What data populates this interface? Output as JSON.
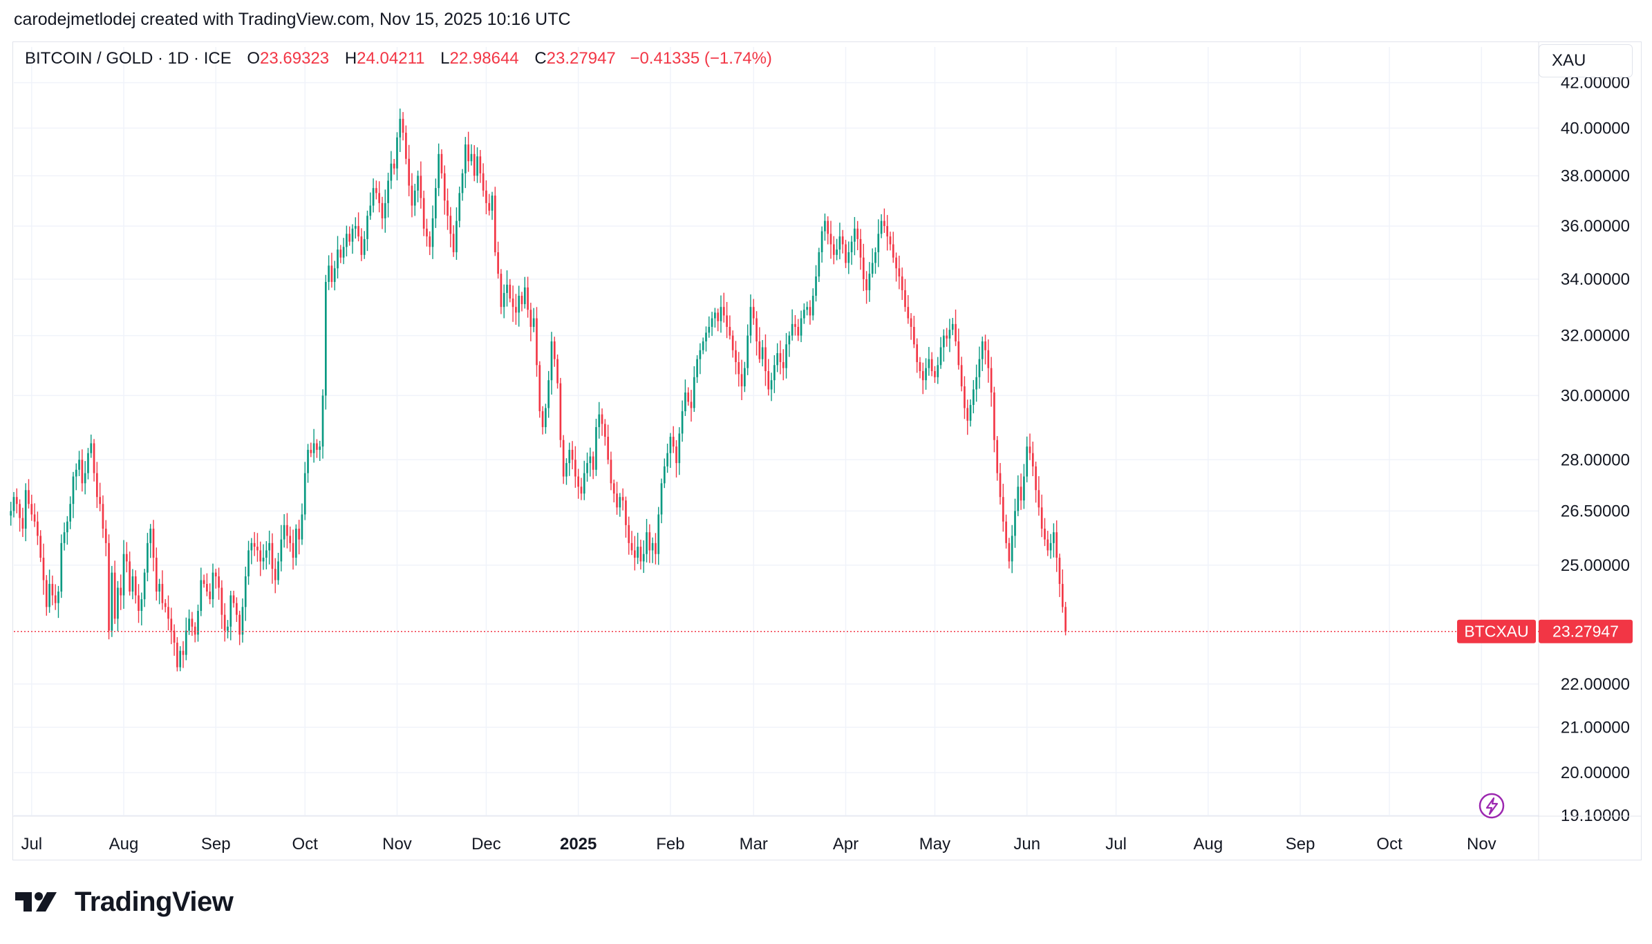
{
  "header": {
    "caption": "carodejmetlodej created with TradingView.com, Nov 15, 2025 10:16 UTC"
  },
  "legend": {
    "symbol": "BITCOIN / GOLD · 1D · ICE",
    "open_label": "O",
    "open_value": "23.69323",
    "high_label": "H",
    "high_value": "24.04211",
    "low_label": "L",
    "low_value": "22.98644",
    "close_label": "C",
    "close_value": "23.27947",
    "change": "−0.41335 (−1.74%)"
  },
  "currency_box": "XAU",
  "price_tag": {
    "symbol": "BTCXAU",
    "value": "23.27947"
  },
  "brand": {
    "name": "TradingView"
  },
  "colors": {
    "up": "#089981",
    "down": "#f23645",
    "grid": "#f0f3fa",
    "axis_text": "#131722",
    "alert_icon": "#9c27b0"
  },
  "chart_data": {
    "type": "candlestick",
    "scale": "log",
    "y_range": [
      19.1,
      43.0
    ],
    "y_ticks": [
      {
        "value": 42.0,
        "label": "42.00000"
      },
      {
        "value": 40.0,
        "label": "40.00000"
      },
      {
        "value": 38.0,
        "label": "38.00000"
      },
      {
        "value": 36.0,
        "label": "36.00000"
      },
      {
        "value": 34.0,
        "label": "34.00000"
      },
      {
        "value": 32.0,
        "label": "32.00000"
      },
      {
        "value": 30.0,
        "label": "30.00000"
      },
      {
        "value": 28.0,
        "label": "28.00000"
      },
      {
        "value": 26.5,
        "label": "26.50000"
      },
      {
        "value": 25.0,
        "label": "25.00000"
      },
      {
        "value": 22.0,
        "label": "22.00000"
      },
      {
        "value": 21.0,
        "label": "21.00000"
      },
      {
        "value": 20.0,
        "label": "20.00000"
      },
      {
        "value": 19.1,
        "label": "19.10000"
      }
    ],
    "x_range": [
      "2024-06-25",
      "2025-11-20"
    ],
    "x_ticks": [
      {
        "date": "2024-07-01",
        "label": "Jul",
        "bold": false
      },
      {
        "date": "2024-08-01",
        "label": "Aug",
        "bold": false
      },
      {
        "date": "2024-09-01",
        "label": "Sep",
        "bold": false
      },
      {
        "date": "2024-10-01",
        "label": "Oct",
        "bold": false
      },
      {
        "date": "2024-11-01",
        "label": "Nov",
        "bold": false
      },
      {
        "date": "2024-12-01",
        "label": "Dec",
        "bold": false
      },
      {
        "date": "2025-01-01",
        "label": "2025",
        "bold": true
      },
      {
        "date": "2025-02-01",
        "label": "Feb",
        "bold": false
      },
      {
        "date": "2025-03-01",
        "label": "Mar",
        "bold": false
      },
      {
        "date": "2025-04-01",
        "label": "Apr",
        "bold": false
      },
      {
        "date": "2025-05-01",
        "label": "May",
        "bold": false
      },
      {
        "date": "2025-06-01",
        "label": "Jun",
        "bold": false
      },
      {
        "date": "2025-07-01",
        "label": "Jul",
        "bold": false
      },
      {
        "date": "2025-08-01",
        "label": "Aug",
        "bold": false
      },
      {
        "date": "2025-09-01",
        "label": "Sep",
        "bold": false
      },
      {
        "date": "2025-10-01",
        "label": "Oct",
        "bold": false
      },
      {
        "date": "2025-11-01",
        "label": "Nov",
        "bold": false
      }
    ],
    "last_price": 23.27947,
    "start_date": "2024-06-24",
    "closes": [
      26.5,
      26.9,
      26.7,
      26.3,
      26.0,
      27.1,
      26.7,
      26.4,
      26.2,
      25.8,
      25.2,
      24.6,
      23.9,
      24.5,
      24.2,
      24.0,
      24.3,
      25.6,
      25.9,
      26.2,
      26.7,
      27.5,
      27.7,
      28.0,
      27.3,
      27.6,
      28.2,
      28.5,
      27.6,
      26.9,
      26.7,
      26.0,
      25.6,
      23.3,
      24.8,
      23.6,
      24.4,
      24.2,
      25.3,
      25.1,
      24.3,
      24.7,
      24.2,
      23.8,
      24.1,
      24.8,
      25.6,
      26.0,
      25.2,
      24.3,
      24.5,
      24.0,
      23.9,
      23.6,
      23.3,
      23.0,
      22.4,
      22.8,
      22.7,
      23.3,
      23.6,
      23.4,
      23.2,
      23.8,
      24.6,
      24.5,
      24.3,
      24.1,
      24.8,
      24.7,
      24.4,
      23.7,
      23.3,
      23.4,
      24.2,
      24.0,
      23.7,
      23.2,
      23.9,
      24.7,
      25.4,
      25.6,
      25.5,
      25.4,
      25.1,
      25.2,
      25.4,
      25.6,
      24.9,
      24.6,
      25.1,
      25.7,
      26.1,
      25.8,
      25.6,
      25.2,
      26.0,
      25.7,
      26.4,
      27.6,
      28.3,
      28.2,
      28.5,
      28.3,
      28.4,
      30.0,
      33.9,
      34.5,
      33.9,
      34.4,
      35.1,
      34.8,
      35.2,
      35.7,
      35.4,
      35.9,
      36.0,
      35.6,
      34.9,
      35.5,
      36.4,
      36.8,
      37.5,
      37.3,
      36.9,
      36.3,
      36.9,
      37.8,
      38.5,
      38.3,
      39.6,
      40.4,
      39.8,
      38.7,
      37.6,
      36.8,
      37.4,
      38.0,
      37.1,
      35.9,
      35.6,
      35.2,
      36.3,
      37.5,
      38.9,
      38.1,
      37.0,
      36.4,
      35.7,
      35.0,
      36.2,
      37.3,
      38.1,
      39.3,
      38.6,
      38.9,
      38.0,
      38.8,
      38.1,
      37.4,
      36.9,
      36.6,
      37.2,
      35.0,
      34.2,
      33.0,
      33.5,
      33.8,
      33.3,
      33.0,
      32.8,
      33.4,
      33.1,
      33.7,
      32.9,
      32.3,
      32.6,
      31.0,
      29.5,
      29.0,
      29.6,
      30.5,
      31.8,
      31.2,
      30.4,
      28.6,
      27.5,
      27.9,
      28.3,
      28.0,
      27.5,
      27.2,
      27.0,
      27.6,
      27.9,
      28.1,
      27.7,
      29.0,
      29.4,
      29.1,
      28.7,
      28.0,
      27.3,
      27.0,
      26.6,
      26.9,
      26.8,
      26.1,
      25.6,
      25.4,
      25.2,
      25.5,
      25.1,
      25.3,
      25.9,
      25.4,
      25.6,
      25.3,
      26.4,
      27.3,
      27.8,
      28.2,
      28.7,
      28.4,
      27.9,
      28.8,
      29.5,
      30.1,
      29.8,
      29.6,
      30.6,
      31.2,
      31.5,
      31.8,
      32.1,
      32.3,
      32.6,
      32.8,
      32.5,
      33.0,
      32.7,
      32.3,
      32.0,
      31.5,
      31.1,
      30.7,
      30.3,
      30.9,
      32.0,
      33.0,
      32.6,
      31.8,
      31.2,
      31.6,
      30.8,
      30.2,
      30.5,
      31.0,
      31.4,
      31.1,
      30.9,
      31.7,
      32.0,
      32.4,
      32.3,
      32.0,
      32.6,
      32.9,
      33.0,
      32.7,
      33.4,
      34.1,
      35.0,
      35.8,
      36.2,
      35.7,
      35.3,
      34.9,
      35.1,
      35.6,
      35.3,
      34.6,
      35.0,
      35.4,
      35.9,
      35.5,
      34.8,
      34.0,
      33.6,
      34.2,
      34.6,
      35.0,
      35.7,
      36.2,
      36.0,
      35.6,
      35.3,
      34.8,
      34.4,
      34.1,
      33.6,
      33.0,
      32.6,
      32.3,
      31.7,
      31.1,
      30.8,
      30.5,
      30.9,
      31.2,
      30.8,
      30.6,
      31.0,
      31.6,
      32.0,
      31.9,
      32.2,
      32.4,
      31.8,
      31.0,
      30.3,
      29.6,
      29.2,
      29.7,
      30.2,
      30.6,
      31.2,
      31.8,
      31.5,
      30.9,
      30.1,
      28.6,
      27.6,
      26.9,
      26.2,
      25.6,
      25.1,
      25.8,
      26.5,
      27.2,
      26.8,
      27.5,
      28.4,
      28.2,
      27.8,
      27.1,
      26.6,
      26.0,
      25.7,
      25.4,
      25.6,
      25.9,
      25.2,
      24.5,
      23.9,
      23.28
    ]
  }
}
